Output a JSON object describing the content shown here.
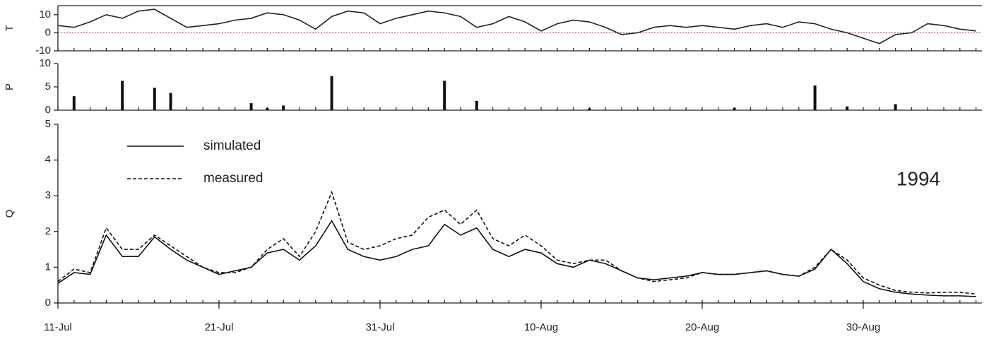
{
  "chart_data": [
    {
      "type": "line",
      "y_label": "T",
      "color": "#222222",
      "hline": 0,
      "hline_color": "#c0392b",
      "x": [
        "11-Jul",
        "12-Jul",
        "13-Jul",
        "14-Jul",
        "15-Jul",
        "16-Jul",
        "17-Jul",
        "18-Jul",
        "19-Jul",
        "20-Jul",
        "21-Jul",
        "22-Jul",
        "23-Jul",
        "24-Jul",
        "25-Jul",
        "26-Jul",
        "27-Jul",
        "28-Jul",
        "29-Jul",
        "30-Jul",
        "31-Jul",
        "1-Aug",
        "2-Aug",
        "3-Aug",
        "4-Aug",
        "5-Aug",
        "6-Aug",
        "7-Aug",
        "8-Aug",
        "9-Aug",
        "10-Aug",
        "11-Aug",
        "12-Aug",
        "13-Aug",
        "14-Aug",
        "15-Aug",
        "16-Aug",
        "17-Aug",
        "18-Aug",
        "19-Aug",
        "20-Aug",
        "21-Aug",
        "22-Aug",
        "23-Aug",
        "24-Aug",
        "25-Aug",
        "26-Aug",
        "27-Aug",
        "28-Aug",
        "29-Aug",
        "30-Aug",
        "31-Aug",
        "1-Sep",
        "2-Sep",
        "3-Sep",
        "4-Sep",
        "5-Sep",
        "6-Sep"
      ],
      "values": [
        4,
        3,
        6,
        10,
        8,
        12,
        13,
        8,
        3,
        4,
        5,
        7,
        8,
        11,
        10,
        7,
        2,
        9,
        12,
        11,
        5,
        8,
        10,
        12,
        11,
        9,
        3,
        5,
        9,
        6,
        1,
        5,
        7,
        6,
        3,
        -1,
        0,
        3,
        4,
        3,
        4,
        3,
        2,
        4,
        5,
        3,
        6,
        5,
        2,
        0,
        -3,
        -6,
        -1,
        0,
        5,
        4,
        2,
        1
      ],
      "ylim": [
        -10,
        15
      ],
      "yticks": [
        -10,
        0,
        10
      ]
    },
    {
      "type": "bar",
      "y_label": "P",
      "color": "#111111",
      "x": [
        "11-Jul",
        "12-Jul",
        "13-Jul",
        "14-Jul",
        "15-Jul",
        "16-Jul",
        "17-Jul",
        "18-Jul",
        "19-Jul",
        "20-Jul",
        "21-Jul",
        "22-Jul",
        "23-Jul",
        "24-Jul",
        "25-Jul",
        "26-Jul",
        "27-Jul",
        "28-Jul",
        "29-Jul",
        "30-Jul",
        "31-Jul",
        "1-Aug",
        "2-Aug",
        "3-Aug",
        "4-Aug",
        "5-Aug",
        "6-Aug",
        "7-Aug",
        "8-Aug",
        "9-Aug",
        "10-Aug",
        "11-Aug",
        "12-Aug",
        "13-Aug",
        "14-Aug",
        "15-Aug",
        "16-Aug",
        "17-Aug",
        "18-Aug",
        "19-Aug",
        "20-Aug",
        "21-Aug",
        "22-Aug",
        "23-Aug",
        "24-Aug",
        "25-Aug",
        "26-Aug",
        "27-Aug",
        "28-Aug",
        "29-Aug",
        "30-Aug",
        "31-Aug",
        "1-Sep",
        "2-Sep",
        "3-Sep",
        "4-Sep",
        "5-Sep",
        "6-Sep"
      ],
      "values": [
        0,
        3,
        0,
        0,
        6.3,
        0,
        4.8,
        3.7,
        0,
        0,
        0,
        0,
        1.5,
        0.5,
        1,
        0,
        0,
        7.3,
        0,
        0,
        0,
        0,
        0,
        0,
        6.3,
        0,
        2,
        0,
        0,
        0,
        0,
        0,
        0,
        0.4,
        0,
        0,
        0,
        0,
        0,
        0,
        0,
        0,
        0.5,
        0,
        0,
        0,
        0,
        5.3,
        0,
        0.8,
        0,
        0,
        1.3,
        0,
        0,
        0,
        0,
        0
      ],
      "ylim": [
        0,
        10
      ],
      "yticks": [
        0,
        5,
        10
      ]
    },
    {
      "type": "line",
      "y_label": "Q",
      "annotation": "1994",
      "x": [
        "11-Jul",
        "12-Jul",
        "13-Jul",
        "14-Jul",
        "15-Jul",
        "16-Jul",
        "17-Jul",
        "18-Jul",
        "19-Jul",
        "20-Jul",
        "21-Jul",
        "22-Jul",
        "23-Jul",
        "24-Jul",
        "25-Jul",
        "26-Jul",
        "27-Jul",
        "28-Jul",
        "29-Jul",
        "30-Jul",
        "31-Jul",
        "1-Aug",
        "2-Aug",
        "3-Aug",
        "4-Aug",
        "5-Aug",
        "6-Aug",
        "7-Aug",
        "8-Aug",
        "9-Aug",
        "10-Aug",
        "11-Aug",
        "12-Aug",
        "13-Aug",
        "14-Aug",
        "15-Aug",
        "16-Aug",
        "17-Aug",
        "18-Aug",
        "19-Aug",
        "20-Aug",
        "21-Aug",
        "22-Aug",
        "23-Aug",
        "24-Aug",
        "25-Aug",
        "26-Aug",
        "27-Aug",
        "28-Aug",
        "29-Aug",
        "30-Aug",
        "31-Aug",
        "1-Sep",
        "2-Sep",
        "3-Sep",
        "4-Sep",
        "5-Sep",
        "6-Sep"
      ],
      "series": [
        {
          "name": "simulated",
          "color": "#111111",
          "line_style": "solid",
          "values": [
            0.55,
            0.85,
            0.8,
            1.9,
            1.3,
            1.3,
            1.85,
            1.5,
            1.2,
            1.0,
            0.8,
            0.9,
            1.0,
            1.4,
            1.5,
            1.2,
            1.6,
            2.3,
            1.5,
            1.3,
            1.2,
            1.3,
            1.5,
            1.6,
            2.2,
            1.9,
            2.1,
            1.5,
            1.3,
            1.5,
            1.4,
            1.1,
            1.0,
            1.2,
            1.1,
            0.9,
            0.7,
            0.65,
            0.7,
            0.75,
            0.85,
            0.8,
            0.8,
            0.85,
            0.9,
            0.8,
            0.75,
            0.95,
            1.5,
            1.1,
            0.6,
            0.4,
            0.3,
            0.25,
            0.22,
            0.2,
            0.2,
            0.18
          ]
        },
        {
          "name": "measured",
          "color": "#111111",
          "line_style": "dashed",
          "values": [
            0.6,
            0.95,
            0.85,
            2.1,
            1.5,
            1.5,
            1.9,
            1.6,
            1.3,
            1.0,
            0.85,
            0.85,
            1.0,
            1.5,
            1.8,
            1.3,
            2.0,
            3.1,
            1.7,
            1.5,
            1.6,
            1.8,
            1.9,
            2.4,
            2.6,
            2.2,
            2.6,
            1.8,
            1.6,
            1.9,
            1.6,
            1.2,
            1.1,
            1.2,
            1.2,
            0.9,
            0.7,
            0.6,
            0.65,
            0.7,
            0.85,
            0.8,
            0.8,
            0.85,
            0.9,
            0.8,
            0.75,
            1.0,
            1.5,
            1.2,
            0.7,
            0.5,
            0.35,
            0.3,
            0.28,
            0.3,
            0.3,
            0.25
          ]
        }
      ],
      "ylim": [
        0,
        5
      ],
      "yticks": [
        0,
        1,
        2,
        3,
        4,
        5
      ],
      "xticks": [
        "11-Jul",
        "21-Jul",
        "31-Jul",
        "10-Aug",
        "20-Aug",
        "30-Aug"
      ]
    }
  ]
}
